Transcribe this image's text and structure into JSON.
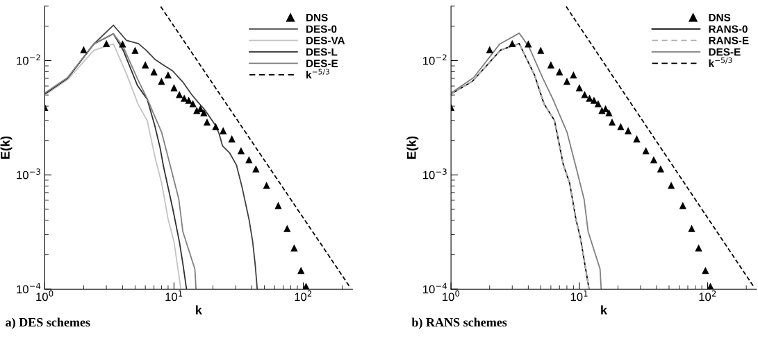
{
  "chart_data": [
    {
      "type": "line",
      "xlabel": "k",
      "ylabel": "E(k)",
      "log": "xy",
      "xlim": [
        1,
        240
      ],
      "ylim": [
        0.0001,
        0.03
      ],
      "xticks": [
        {
          "value": 1,
          "label": "10$^{0}$"
        },
        {
          "value": 10,
          "label": "10$^{1}$"
        },
        {
          "value": 100,
          "label": "10$^{2}$"
        }
      ],
      "yticks": [
        {
          "value": 0.0001,
          "label": "10$^{−4}$"
        },
        {
          "value": 0.001,
          "label": "10$^{−3}$"
        },
        {
          "value": 0.01,
          "label": "10$^{−2}$"
        }
      ],
      "legend": "top right",
      "grid": false,
      "annotations": [
        "a) DES schemes"
      ],
      "series": [
        {
          "name": "DNS",
          "type": "scatter",
          "marker": "triangle",
          "color": "#000000",
          "x": [
            1,
            2,
            3,
            4,
            5,
            6,
            7,
            8,
            9,
            10,
            11,
            12,
            13,
            14,
            15,
            16,
            17,
            18,
            21,
            24,
            28,
            33,
            38,
            43,
            52,
            64,
            75,
            85,
            96,
            105
          ],
          "values": [
            0.0039,
            0.0125,
            0.0141,
            0.014,
            0.0123,
            0.0092,
            0.008,
            0.0066,
            0.0075,
            0.0058,
            0.00505,
            0.0047,
            0.0045,
            0.0042,
            0.00366,
            0.0038,
            0.0035,
            0.0029,
            0.00265,
            0.00244,
            0.00207,
            0.00163,
            0.00136,
            0.00113,
            0.00081,
            0.00054,
            0.00034,
            0.00023,
            0.000146,
            0.000106
          ]
        },
        {
          "name": "DES-0",
          "type": "line",
          "color": "#404040",
          "x": [
            1,
            1.5,
            2.4,
            3.4,
            4.3,
            5.3,
            6.1,
            7.1,
            8.1,
            9.8,
            11.7,
            13.6,
            15.4,
            17,
            18.6,
            21,
            22.3,
            23.7,
            26.9,
            30.4,
            33.6,
            38,
            40.6,
            42.5,
            44
          ],
          "values": [
            0.0051,
            0.007,
            0.014,
            0.0204,
            0.015,
            0.0141,
            0.0123,
            0.0103,
            0.0093,
            0.0081,
            0.0065,
            0.0051,
            0.0043,
            0.0038,
            0.0033,
            0.0027,
            0.0023,
            0.0018,
            0.00156,
            0.00122,
            0.00078,
            0.00041,
            0.00026,
            0.000162,
            0.0001
          ]
        },
        {
          "name": "DES-VA",
          "type": "line",
          "color": "#c4c4c4",
          "x": [
            1,
            1.5,
            2.4,
            3.4,
            4.3,
            5.3,
            6.2,
            7.2,
            8,
            9,
            10,
            11.3
          ],
          "values": [
            0.005,
            0.0068,
            0.0123,
            0.014,
            0.0076,
            0.0041,
            0.003,
            0.00136,
            0.00086,
            0.00041,
            0.00026,
            0.0001
          ]
        },
        {
          "name": "DES-L",
          "type": "line",
          "color": "#303030",
          "x": [
            1,
            1.5,
            2.4,
            3.4,
            4.05,
            5.2,
            6.2,
            7.1,
            7.8,
            8.3,
            9.8,
            11,
            11.7,
            12.5
          ],
          "values": [
            0.0051,
            0.007,
            0.014,
            0.0172,
            0.0123,
            0.0061,
            0.0046,
            0.0027,
            0.00173,
            0.00118,
            0.0005,
            0.00026,
            0.000168,
            0.0001
          ]
        },
        {
          "name": "DES-E",
          "type": "line",
          "color": "#808080",
          "x": [
            1,
            1.5,
            2.4,
            3.4,
            4.05,
            5.2,
            6.2,
            8,
            9.4,
            10.9,
            11.7,
            14.5,
            14.8
          ],
          "values": [
            0.0052,
            0.0071,
            0.014,
            0.0172,
            0.0132,
            0.007,
            0.00465,
            0.00238,
            0.00118,
            0.00061,
            0.00032,
            0.00015,
            0.0001
          ]
        },
        {
          "name": "k$^{−5/3}$",
          "type": "line",
          "line_style": "dashed",
          "color": "#000000",
          "x": [
            7.9,
            226
          ],
          "values": [
            0.0297,
            0.000107
          ]
        }
      ]
    },
    {
      "type": "line",
      "xlabel": "k",
      "ylabel": "E(k)",
      "log": "xy",
      "xlim": [
        1,
        240
      ],
      "ylim": [
        0.0001,
        0.03
      ],
      "xticks": [
        {
          "value": 1,
          "label": "10$^{0}$"
        },
        {
          "value": 10,
          "label": "10$^{1}$"
        },
        {
          "value": 100,
          "label": "10$^{2}$"
        }
      ],
      "yticks": [
        {
          "value": 0.0001,
          "label": "10$^{−4}$"
        },
        {
          "value": 0.001,
          "label": "10$^{−3}$"
        },
        {
          "value": 0.01,
          "label": "10$^{−2}$"
        }
      ],
      "legend": "top right",
      "grid": false,
      "annotations": [
        "b) RANS schemes"
      ],
      "series": [
        {
          "name": "DNS",
          "type": "scatter",
          "marker": "triangle",
          "color": "#000000",
          "x": [
            1,
            2,
            3,
            4,
            5,
            6,
            7,
            8,
            9,
            10,
            11,
            12,
            13,
            14,
            15,
            16,
            17,
            18,
            21,
            24,
            28,
            33,
            38,
            43,
            52,
            64,
            75,
            85,
            96,
            105
          ],
          "values": [
            0.0039,
            0.0125,
            0.0141,
            0.014,
            0.0123,
            0.0092,
            0.008,
            0.0066,
            0.0075,
            0.0058,
            0.00505,
            0.0047,
            0.0045,
            0.0042,
            0.00366,
            0.0038,
            0.0035,
            0.0029,
            0.00265,
            0.00244,
            0.00207,
            0.00163,
            0.00136,
            0.00113,
            0.00081,
            0.00054,
            0.00034,
            0.00023,
            0.000146,
            0.000106
          ]
        },
        {
          "name": "RANS-0",
          "type": "line",
          "color": "#000000",
          "x": [
            1,
            1.47,
            2.44,
            3.4,
            4.47,
            5.3,
            6.4,
            7.5,
            8.4,
            9.4,
            10.2,
            11.9
          ],
          "values": [
            0.0051,
            0.0066,
            0.0124,
            0.0141,
            0.0075,
            0.0042,
            0.003,
            0.00123,
            0.00085,
            0.00041,
            0.00028,
            0.0001
          ]
        },
        {
          "name": "RANS-E",
          "type": "line",
          "line_style": "dashed",
          "color": "#b0b0b0",
          "x": [
            1,
            1.47,
            2.44,
            3.4,
            4.47,
            5.3,
            6.4,
            7.5,
            8.4,
            9.4,
            10.2,
            11.9
          ],
          "values": [
            0.0051,
            0.0066,
            0.0124,
            0.0141,
            0.0075,
            0.0042,
            0.003,
            0.00123,
            0.00085,
            0.00041,
            0.00028,
            0.0001
          ]
        },
        {
          "name": "DES-E",
          "type": "line",
          "color": "#808080",
          "x": [
            1,
            1.5,
            2.4,
            3.4,
            4.05,
            5.2,
            6.2,
            8,
            9.4,
            10.9,
            11.7,
            14.5,
            14.8
          ],
          "values": [
            0.0052,
            0.0071,
            0.014,
            0.0174,
            0.0132,
            0.007,
            0.00465,
            0.00238,
            0.00118,
            0.00061,
            0.00032,
            0.00015,
            0.0001
          ]
        },
        {
          "name": "k$^{−5/3}$",
          "type": "line",
          "line_style": "dashed",
          "color": "#000000",
          "x": [
            7.9,
            226
          ],
          "values": [
            0.0297,
            0.000107
          ]
        }
      ]
    }
  ]
}
